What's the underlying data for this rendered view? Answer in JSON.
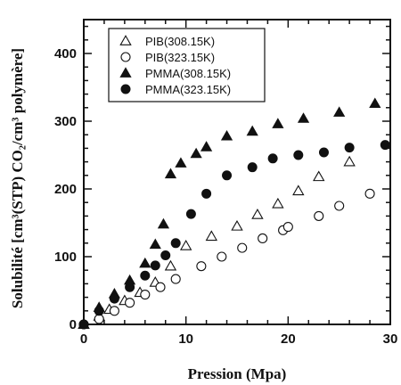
{
  "chart_data": {
    "type": "scatter",
    "xlabel": "Pression (Mpa)",
    "ylabel": "Solubilité [cm³(STP) CO₂/cm³ polymère]",
    "xlim": [
      0,
      30
    ],
    "ylim": [
      0,
      450
    ],
    "xticks": [
      "0",
      "10",
      "20",
      "30"
    ],
    "yticks": [
      "0",
      "100",
      "200",
      "300",
      "400"
    ],
    "grid": false,
    "legend_position": "top-left",
    "series": [
      {
        "name": "PIB(308.15K)",
        "marker": "open-triangle",
        "x": [
          0,
          1.5,
          2.5,
          4,
          5.5,
          7,
          8.5,
          10,
          12.5,
          15,
          17,
          19,
          21,
          23,
          26
        ],
        "y": [
          0,
          12,
          22,
          35,
          47,
          62,
          86,
          116,
          130,
          145,
          162,
          178,
          197,
          218,
          240
        ]
      },
      {
        "name": "PIB(323.15K)",
        "marker": "open-circle",
        "x": [
          0,
          1.5,
          3,
          4.5,
          6,
          7.5,
          9,
          11.5,
          13.5,
          15.5,
          17.5,
          19.5,
          20,
          23,
          25,
          28
        ],
        "y": [
          0,
          8,
          20,
          32,
          44,
          55,
          67,
          86,
          100,
          113,
          127,
          139,
          144,
          160,
          175,
          193
        ]
      },
      {
        "name": "PMMA(308.15K)",
        "marker": "filled-triangle",
        "x": [
          0,
          1.5,
          3,
          4.5,
          6,
          7,
          7.8,
          8.5,
          9.5,
          11,
          12,
          14,
          16.5,
          19,
          21.5,
          25,
          28.5
        ],
        "y": [
          0,
          25,
          45,
          65,
          90,
          118,
          148,
          222,
          238,
          252,
          262,
          278,
          285,
          296,
          304,
          313,
          326
        ]
      },
      {
        "name": "PMMA(323.15K)",
        "marker": "filled-circle",
        "x": [
          0,
          1.5,
          3,
          4.5,
          6,
          7,
          8,
          9,
          10.5,
          12,
          14,
          16.5,
          18.5,
          21,
          23.5,
          26,
          29.5
        ],
        "y": [
          0,
          20,
          38,
          55,
          72,
          87,
          102,
          120,
          163,
          193,
          220,
          232,
          245,
          250,
          254,
          261,
          265
        ]
      }
    ]
  }
}
